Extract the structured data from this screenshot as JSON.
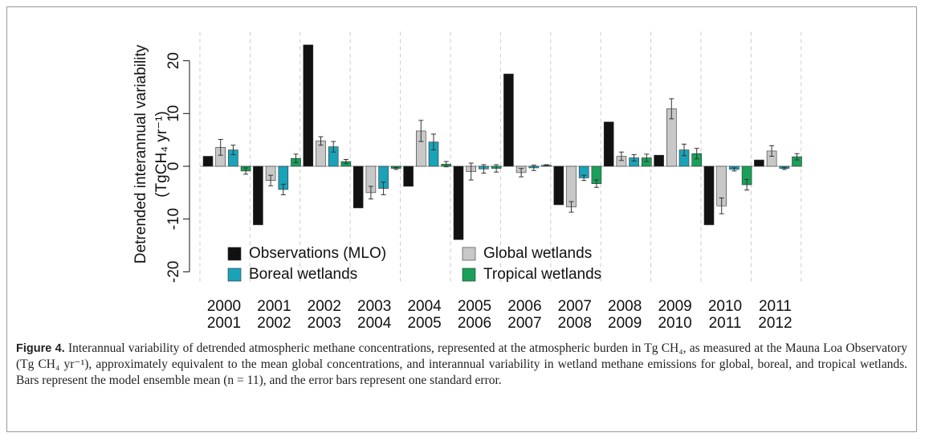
{
  "chart_data": {
    "type": "bar",
    "y_label": [
      "Detrended interannual variability",
      "(TgCH₄ yr⁻¹)"
    ],
    "categories": [
      [
        "2000",
        "2001"
      ],
      [
        "2001",
        "2002"
      ],
      [
        "2002",
        "2003"
      ],
      [
        "2003",
        "2004"
      ],
      [
        "2004",
        "2005"
      ],
      [
        "2005",
        "2006"
      ],
      [
        "2006",
        "2007"
      ],
      [
        "2007",
        "2008"
      ],
      [
        "2008",
        "2009"
      ],
      [
        "2009",
        "2010"
      ],
      [
        "2010",
        "2011"
      ],
      [
        "2011",
        "2012"
      ]
    ],
    "ylim": [
      -22,
      25.5
    ],
    "yticks": [
      -20,
      -10,
      0,
      10,
      20
    ],
    "series": [
      {
        "name": "Observations (MLO)",
        "color": "#111111",
        "values": [
          1.9,
          -11.1,
          23,
          -7.9,
          -3.8,
          -13.9,
          17.5,
          -7.3,
          8.4,
          2.1,
          -11.1,
          1.2
        ]
      },
      {
        "name": "Global wetlands",
        "color": "#c8c8c8",
        "values": [
          3.6,
          -2.7,
          4.8,
          -5,
          6.7,
          -1,
          -1.2,
          -7.7,
          1.9,
          10.9,
          -7.5,
          2.9
        ],
        "errors": [
          1.5,
          1,
          0.8,
          1.2,
          2,
          1.6,
          0.8,
          1,
          0.8,
          1.9,
          1.5,
          1
        ]
      },
      {
        "name": "Boreal wetlands",
        "color": "#1aa3b8",
        "values": [
          3.1,
          -4.4,
          3.7,
          -4.2,
          4.6,
          -0.5,
          -0.3,
          -2.2,
          1.6,
          3.1,
          -0.6,
          -0.4
        ],
        "errors": [
          0.9,
          1,
          1,
          1.2,
          1.5,
          0.8,
          0.5,
          0.5,
          0.6,
          1.1,
          0.3,
          0.2
        ]
      },
      {
        "name": "Tropical wetlands",
        "color": "#1aa05a",
        "values": [
          -0.9,
          1.5,
          0.9,
          -0.4,
          0.4,
          -0.4,
          0.2,
          -3.3,
          1.6,
          2.4,
          -3.5,
          1.8
        ],
        "errors": [
          0.6,
          0.8,
          0.4,
          0.2,
          0.5,
          0.7,
          0.1,
          0.7,
          0.7,
          1,
          1,
          0.6
        ]
      }
    ]
  },
  "caption": {
    "label": "Figure 4.",
    "text": "Interannual variability of detrended atmospheric methane concentrations, represented at the atmospheric burden in Tg CH₄, as measured at the Mauna Loa Observatory (Tg CH₄ yr⁻¹), approximately equivalent to the mean global concentrations, and interannual variability in wetland methane emissions for global, boreal, and tropical wetlands. Bars represent the model ensemble mean (n = 11), and the error bars represent one standard error."
  }
}
